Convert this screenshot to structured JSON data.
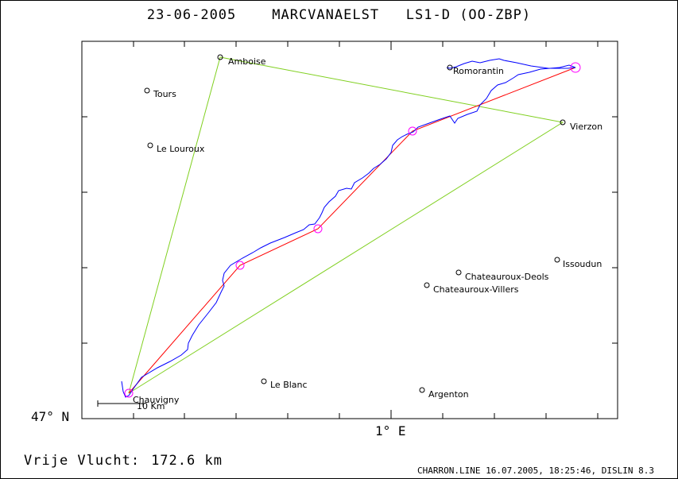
{
  "header": {
    "date": "23-06-2005",
    "pilot": "MARCVANAELST",
    "glider": "LS1-D (OO-ZBP)"
  },
  "axes": {
    "lat_label": "47° N",
    "lon_label": "1° E"
  },
  "scale_bar": {
    "label": "10 Km"
  },
  "footer": {
    "distance_label": "Vrije Vlucht:",
    "distance_value": "172.6 km",
    "meta": "CHARRON.LINE 16.07.2005, 18:25:46, DISLIN 8.3"
  },
  "places": [
    {
      "name": "Amboise",
      "type": "turnpoint"
    },
    {
      "name": "Tours",
      "type": "town"
    },
    {
      "name": "Le Louroux",
      "type": "town"
    },
    {
      "name": "Romorantin",
      "type": "town"
    },
    {
      "name": "Vierzon",
      "type": "turnpoint"
    },
    {
      "name": "Issoudun",
      "type": "town"
    },
    {
      "name": "Chateauroux-Deols",
      "type": "town"
    },
    {
      "name": "Chateauroux-Villers",
      "type": "town"
    },
    {
      "name": "Le Blanc",
      "type": "town"
    },
    {
      "name": "Argenton",
      "type": "town"
    },
    {
      "name": "Chauvigny",
      "type": "start"
    }
  ],
  "colors": {
    "track": "#0000ff",
    "route": "#ff0000",
    "triangle": "#80d020",
    "markers": "#ff00ff",
    "frame": "#000000"
  }
}
